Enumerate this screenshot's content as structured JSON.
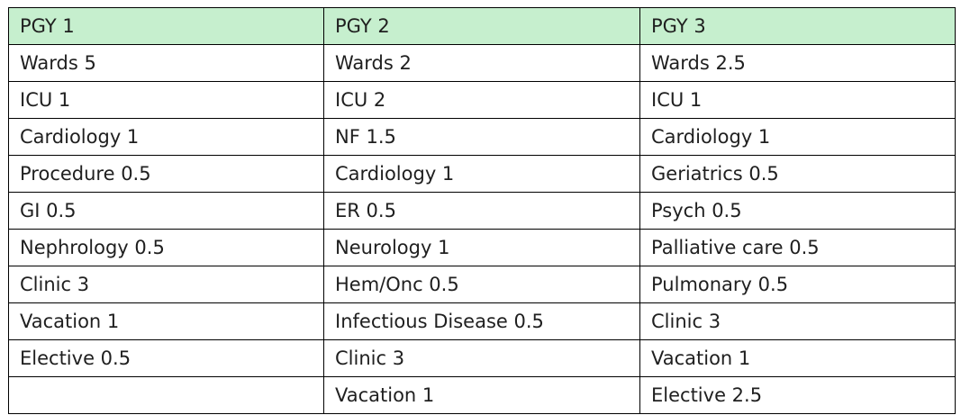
{
  "table": {
    "header_color": "#c6efce",
    "headers": [
      "PGY 1",
      "PGY 2",
      "PGY 3"
    ],
    "rows": [
      [
        "Wards 5",
        "Wards 2",
        "Wards 2.5"
      ],
      [
        "ICU 1",
        "ICU 2",
        "ICU 1"
      ],
      [
        "Cardiology 1",
        "NF 1.5",
        "Cardiology 1"
      ],
      [
        "Procedure 0.5",
        "Cardiology 1",
        "Geriatrics 0.5"
      ],
      [
        "GI 0.5",
        "ER 0.5",
        "Psych 0.5"
      ],
      [
        "Nephrology 0.5",
        "Neurology 1",
        "Palliative care 0.5"
      ],
      [
        "Clinic 3",
        "Hem/Onc 0.5",
        "Pulmonary 0.5"
      ],
      [
        "Vacation 1",
        "Infectious Disease 0.5",
        "Clinic 3"
      ],
      [
        "Elective 0.5",
        "Clinic 3",
        "Vacation 1"
      ],
      [
        "",
        "Vacation 1",
        "Elective 2.5"
      ]
    ]
  }
}
